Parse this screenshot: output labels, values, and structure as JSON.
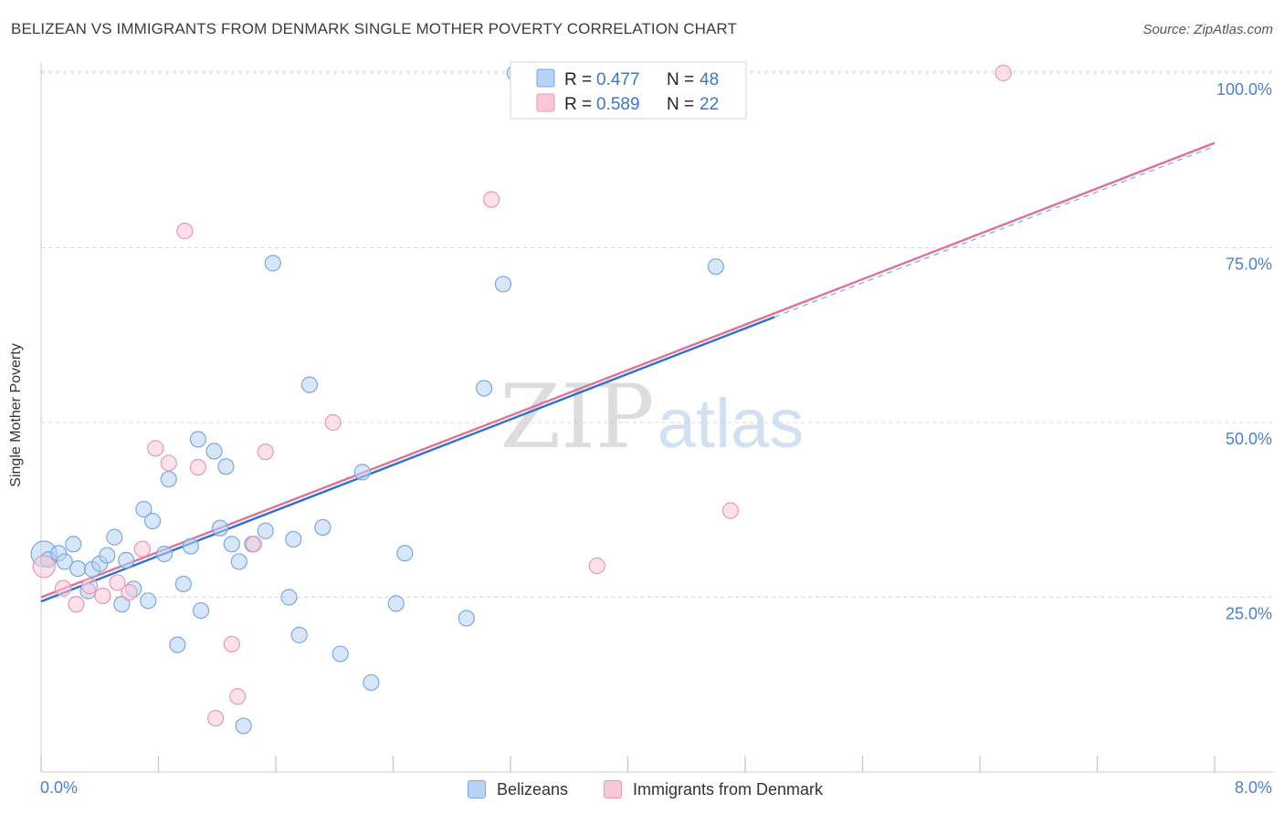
{
  "title": "BELIZEAN VS IMMIGRANTS FROM DENMARK SINGLE MOTHER POVERTY CORRELATION CHART",
  "source": "Source: ZipAtlas.com",
  "watermark": {
    "zip": "ZIP",
    "atlas": "atlas"
  },
  "colors": {
    "blue_fill": "#b8d3f3",
    "blue_stroke": "#7aa8e3",
    "blue_line": "#2f6fcf",
    "pink_fill": "#f8c8d8",
    "pink_stroke": "#eb97b4",
    "pink_line": "#e07096",
    "tick_label": "#4a80d0",
    "grid": "#d8d8d8"
  },
  "legend_box": {
    "rows": [
      {
        "r_label": "R = ",
        "r_value": "0.477",
        "n_label": "N = ",
        "n_value": "48",
        "series": "blue"
      },
      {
        "r_label": "R = ",
        "r_value": "0.589",
        "n_label": "N = ",
        "n_value": "22",
        "series": "pink"
      }
    ]
  },
  "legend_bottom": {
    "blue": "Belizeans",
    "pink": "Immigrants from Denmark"
  },
  "chart_data": {
    "type": "scatter",
    "title": "BELIZEAN VS IMMIGRANTS FROM DENMARK SINGLE MOTHER POVERTY CORRELATION CHART",
    "xlabel": "",
    "ylabel": "Single Mother Poverty",
    "xlim": [
      0,
      8
    ],
    "ylim": [
      0,
      102
    ],
    "x_tick_labels": [
      "0.0%",
      "8.0%"
    ],
    "y_ticks": [
      25,
      50,
      75,
      100
    ],
    "y_tick_labels": [
      "25.0%",
      "50.0%",
      "75.0%",
      "100.0%"
    ],
    "grid": "horizontal dashed",
    "legend_placement": "top-center and bottom",
    "series": [
      {
        "name": "Belizeans",
        "color": "#7aa8e3",
        "points": [
          [
            0.02,
            31.2
          ],
          [
            0.05,
            30.4
          ],
          [
            0.12,
            31.3
          ],
          [
            0.16,
            30.1
          ],
          [
            0.22,
            32.6
          ],
          [
            0.25,
            29.1
          ],
          [
            0.32,
            25.9
          ],
          [
            0.35,
            29.0
          ],
          [
            0.4,
            29.8
          ],
          [
            0.45,
            31.0
          ],
          [
            0.5,
            33.6
          ],
          [
            0.55,
            24.0
          ],
          [
            0.58,
            30.3
          ],
          [
            0.63,
            26.2
          ],
          [
            0.7,
            37.6
          ],
          [
            0.73,
            24.5
          ],
          [
            0.76,
            35.9
          ],
          [
            0.84,
            31.2
          ],
          [
            0.87,
            41.9
          ],
          [
            0.93,
            18.2
          ],
          [
            0.97,
            26.9
          ],
          [
            1.02,
            32.3
          ],
          [
            1.07,
            47.6
          ],
          [
            1.09,
            23.1
          ],
          [
            1.18,
            45.9
          ],
          [
            1.22,
            34.9
          ],
          [
            1.26,
            43.7
          ],
          [
            1.3,
            32.6
          ],
          [
            1.35,
            30.1
          ],
          [
            1.38,
            6.6
          ],
          [
            1.44,
            32.6
          ],
          [
            1.53,
            34.5
          ],
          [
            1.58,
            72.8
          ],
          [
            1.69,
            25.0
          ],
          [
            1.72,
            33.3
          ],
          [
            1.76,
            19.6
          ],
          [
            1.83,
            55.4
          ],
          [
            1.92,
            35.0
          ],
          [
            2.04,
            16.9
          ],
          [
            2.19,
            42.9
          ],
          [
            2.25,
            12.8
          ],
          [
            2.42,
            24.1
          ],
          [
            2.48,
            31.3
          ],
          [
            2.9,
            22.0
          ],
          [
            3.02,
            54.9
          ],
          [
            3.15,
            69.8
          ],
          [
            3.23,
            100.0
          ],
          [
            4.6,
            72.3
          ]
        ],
        "trend": {
          "x": [
            0.0,
            5.0
          ],
          "y": [
            24.4,
            65.1
          ]
        }
      },
      {
        "name": "Immigrants from Denmark",
        "color": "#eb97b4",
        "points": [
          [
            0.02,
            29.4
          ],
          [
            0.15,
            26.3
          ],
          [
            0.24,
            24.0
          ],
          [
            0.33,
            26.6
          ],
          [
            0.42,
            25.2
          ],
          [
            0.52,
            27.1
          ],
          [
            0.6,
            25.7
          ],
          [
            0.69,
            31.9
          ],
          [
            0.78,
            46.3
          ],
          [
            0.87,
            44.2
          ],
          [
            0.98,
            77.4
          ],
          [
            1.07,
            43.6
          ],
          [
            1.19,
            7.7
          ],
          [
            1.3,
            18.3
          ],
          [
            1.34,
            10.8
          ],
          [
            1.45,
            32.6
          ],
          [
            1.53,
            45.8
          ],
          [
            1.99,
            50.0
          ],
          [
            3.07,
            81.9
          ],
          [
            3.79,
            29.5
          ],
          [
            4.7,
            37.4
          ],
          [
            6.56,
            100.0
          ]
        ],
        "trend": {
          "x": [
            0.0,
            8.0
          ],
          "y": [
            25.0,
            90.0
          ]
        }
      }
    ]
  }
}
